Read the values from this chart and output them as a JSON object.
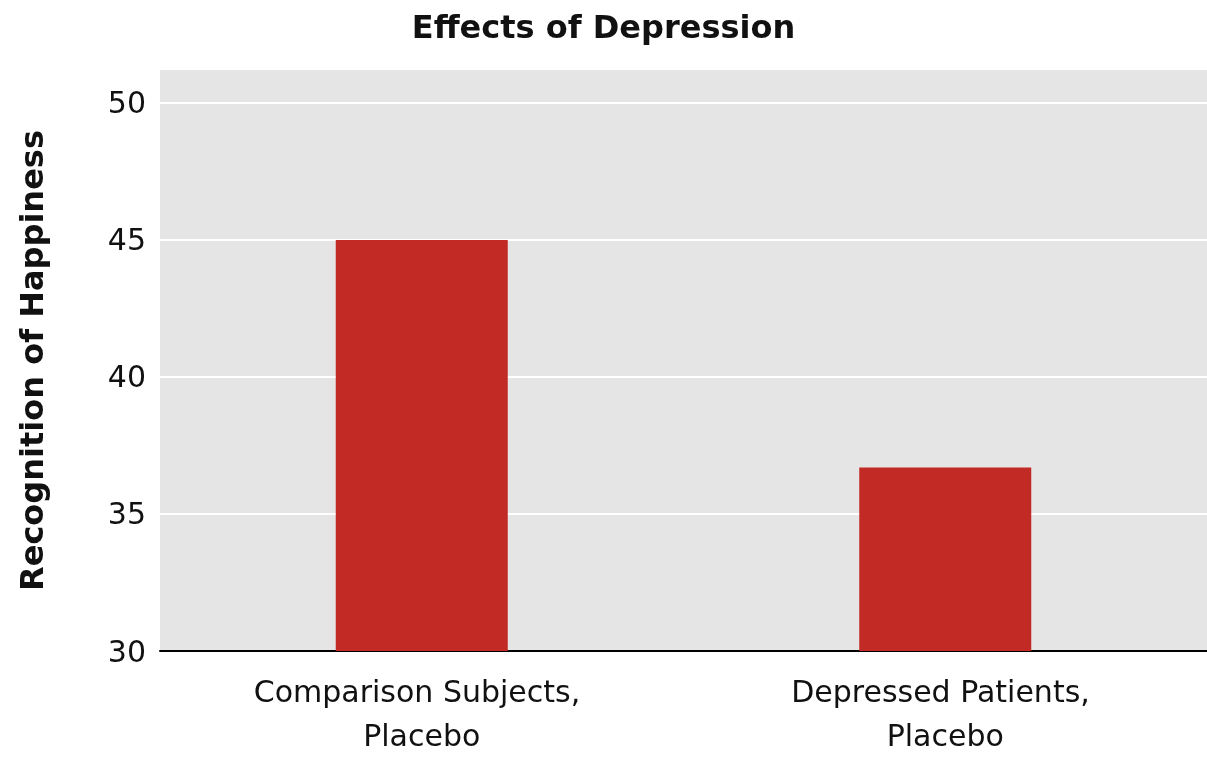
{
  "chart_data": {
    "type": "bar",
    "title": "Effects of Depression",
    "ylabel": "Recognition of Happiness",
    "categories": [
      "Comparison Subjects, Placebo",
      "Depressed Patients, Placebo"
    ],
    "values": [
      45,
      36.7
    ],
    "color": "#c12a25",
    "ylim": [
      30,
      51.2
    ],
    "yticks": [
      30,
      35,
      40,
      45,
      50
    ],
    "grid": "y"
  }
}
